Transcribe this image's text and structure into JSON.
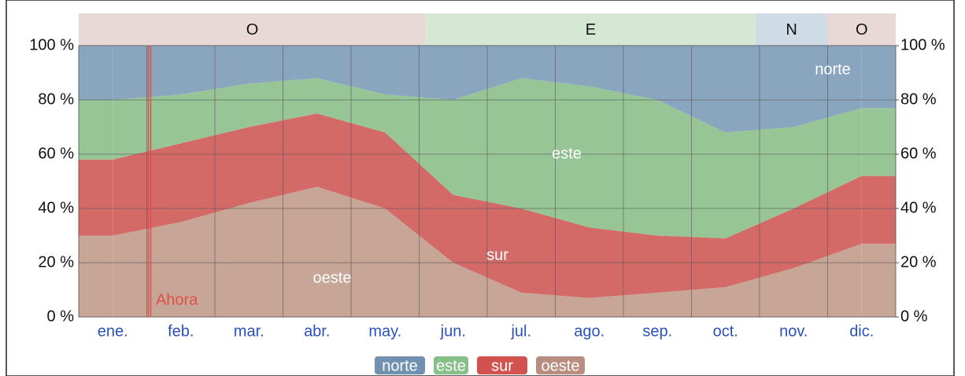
{
  "chart_data": {
    "type": "stacked_area",
    "categories": [
      "ene.",
      "feb.",
      "mar.",
      "abr.",
      "may.",
      "jun.",
      "jul.",
      "ago.",
      "sep.",
      "oct.",
      "nov.",
      "dic."
    ],
    "series": [
      {
        "name": "oeste",
        "color": "#c7a597",
        "legend_color": "#b98e80",
        "values": [
          30,
          35,
          42,
          48,
          40,
          20,
          9,
          7,
          9,
          11,
          18,
          27
        ]
      },
      {
        "name": "sur",
        "color": "#d46a68",
        "legend_color": "#d2524f",
        "values": [
          28,
          29,
          28,
          27,
          28,
          25,
          31,
          26,
          21,
          18,
          22,
          25
        ]
      },
      {
        "name": "este",
        "color": "#97c596",
        "legend_color": "#86bf88",
        "values": [
          22,
          18,
          16,
          13,
          14,
          35,
          48,
          52,
          50,
          39,
          30,
          25
        ]
      },
      {
        "name": "norte",
        "color": "#8aa6bf",
        "legend_color": "#7092b0",
        "values": [
          20,
          18,
          14,
          12,
          18,
          20,
          12,
          15,
          20,
          32,
          30,
          23
        ]
      }
    ],
    "ylim": [
      0,
      100
    ],
    "yticks": [
      {
        "value": 0,
        "label": "0 %"
      },
      {
        "value": 20,
        "label": "20 %"
      },
      {
        "value": 40,
        "label": "40 %"
      },
      {
        "value": 60,
        "label": "60 %"
      },
      {
        "value": 80,
        "label": "80 %"
      },
      {
        "value": 100,
        "label": "100 %"
      }
    ],
    "y2lim": [
      100,
      0
    ],
    "y2ticks": [
      {
        "value": 100,
        "label": "100 %"
      },
      {
        "value": 80,
        "label": "80 %"
      },
      {
        "value": 60,
        "label": "60 %"
      },
      {
        "value": 40,
        "label": "40 %"
      },
      {
        "value": 20,
        "label": "20 %"
      },
      {
        "value": 0,
        "label": "0 %"
      }
    ],
    "grid": true,
    "direction_bands": [
      {
        "label": "O",
        "from": 0,
        "to": 5.1,
        "color": "#e8d9d6"
      },
      {
        "label": "E",
        "from": 5.1,
        "to": 9.94,
        "color": "#d5e8d4"
      },
      {
        "label": "N",
        "from": 9.94,
        "to": 11,
        "color": "#cfdbe5"
      },
      {
        "label": "O",
        "from": 11,
        "to": 12,
        "color": "#e8d9d6"
      }
    ],
    "now_marker": {
      "label": "Ahora",
      "position": 1.04,
      "color": "#e0504a"
    }
  }
}
